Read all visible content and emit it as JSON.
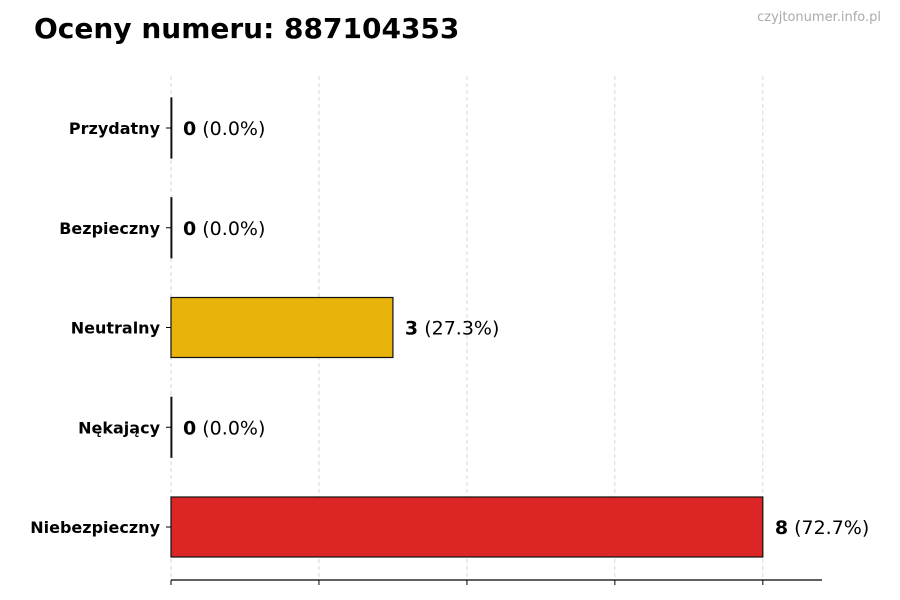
{
  "title": "Oceny numeru: 887104353",
  "watermark": "czyjtonumer.info.pl",
  "chart_data": {
    "type": "bar",
    "orientation": "horizontal",
    "categories": [
      "Przydatny",
      "Bezpieczny",
      "Neutralny",
      "Nękający",
      "Niebezpieczny"
    ],
    "values": [
      0,
      0,
      3,
      0,
      8
    ],
    "percent_labels": [
      "(0.0%)",
      "(0.0%)",
      "(27.3%)",
      "(0.0%)",
      "(72.7%)"
    ],
    "colors": [
      "#4caf50",
      "#2196f3",
      "#e8b30a",
      "#ff9800",
      "#dc2626"
    ],
    "xlim": [
      0,
      8.8
    ],
    "x_gridlines": [
      0,
      2,
      4,
      6,
      8
    ],
    "x_tick_labels_shown": false,
    "grid": "vertical dashed",
    "title": "Oceny numeru: 887104353",
    "xlabel": "",
    "ylabel": ""
  }
}
